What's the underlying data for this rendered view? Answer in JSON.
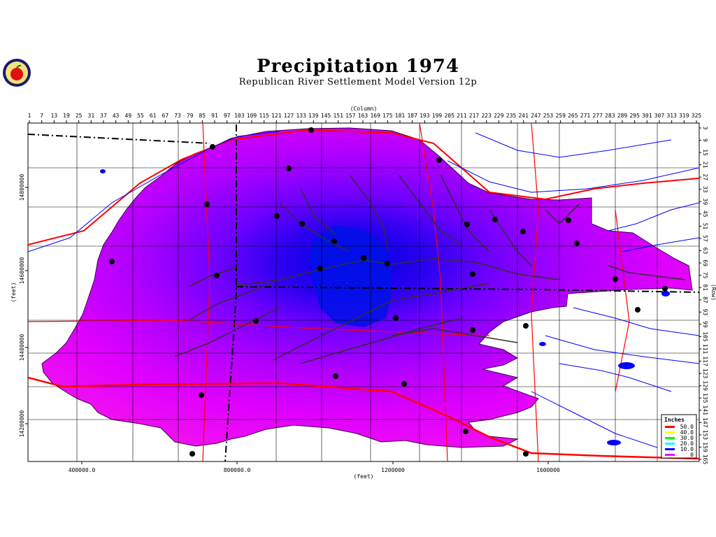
{
  "header": {
    "title": "Precipitation 1974",
    "subtitle": "Republican River Settlement Model Version 12p"
  },
  "axes": {
    "column_label": "(Column)",
    "row_label": "(Row)",
    "x_label": "(feet)",
    "y_label": "(feet)",
    "column_ticks": [
      "1",
      "7",
      "13",
      "19",
      "25",
      "31",
      "37",
      "43",
      "49",
      "55",
      "61",
      "67",
      "73",
      "79",
      "85",
      "91",
      "97",
      "103",
      "109",
      "115",
      "121",
      "127",
      "133",
      "139",
      "145",
      "151",
      "157",
      "163",
      "169",
      "175",
      "181",
      "187",
      "193",
      "199",
      "205",
      "211",
      "217",
      "223",
      "229",
      "235",
      "241",
      "247",
      "253",
      "259",
      "265",
      "271",
      "277",
      "283",
      "289",
      "295",
      "301",
      "307",
      "313",
      "319",
      "325"
    ],
    "row_ticks": [
      "3",
      "9",
      "15",
      "21",
      "27",
      "33",
      "39",
      "45",
      "51",
      "57",
      "63",
      "69",
      "75",
      "81",
      "87",
      "93",
      "99",
      "105",
      "111",
      "117",
      "123",
      "129",
      "135",
      "141",
      "147",
      "153",
      "159",
      "165"
    ],
    "x_ticks": [
      "400000.0",
      "800000.0",
      "1200000",
      "1600000"
    ],
    "y_ticks": [
      "14800000",
      "14600000",
      "14400000",
      "14200000"
    ]
  },
  "legend": {
    "title": "Inches",
    "items": [
      {
        "label": "50.0",
        "color": "#ff0000"
      },
      {
        "label": "40.0",
        "color": "#ffff00"
      },
      {
        "label": "30.0",
        "color": "#00ff00"
      },
      {
        "label": "20.0",
        "color": "#00ffff"
      },
      {
        "label": "10.0",
        "color": "#0000ff"
      },
      {
        "label": "0",
        "color": "#ff00ff"
      }
    ]
  },
  "colors": {
    "high_precip": "#0000e6",
    "mid_precip": "#8000ff",
    "low_precip": "#ff00ff",
    "rivers": "#0000ff",
    "roads": "#ff0000",
    "boundaries": "#000000"
  }
}
